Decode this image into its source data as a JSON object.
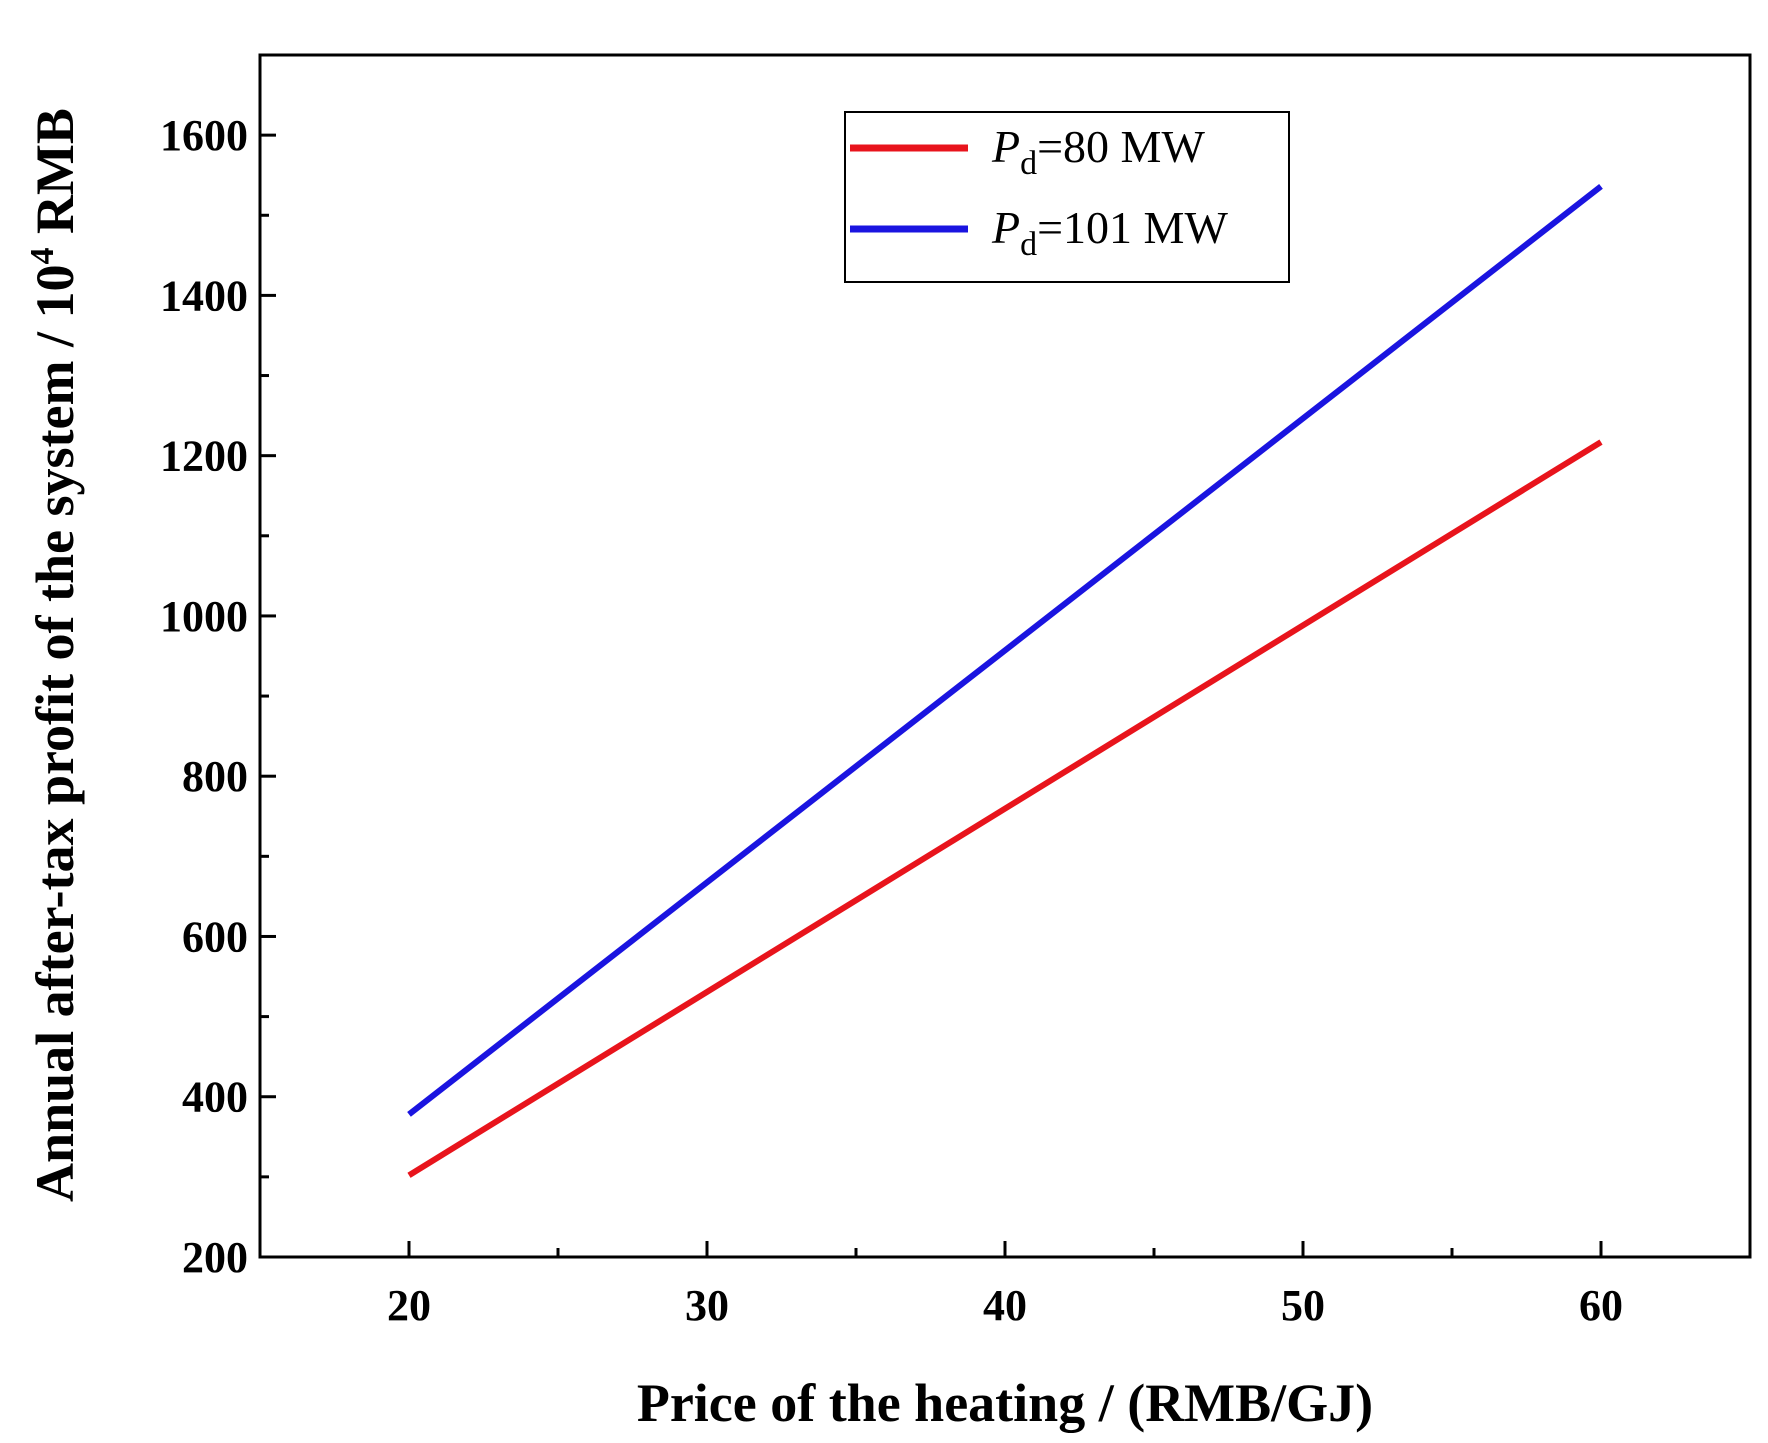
{
  "chart_data": {
    "type": "line",
    "title": "",
    "xlabel": "Price of the heating / (RMB/GJ)",
    "ylabel_main": "Annual after-tax profit of the system / 10",
    "ylabel_sup": "4",
    "ylabel_unit": " RMB",
    "xlim": [
      15,
      65
    ],
    "ylim": [
      200,
      1700
    ],
    "xticks": [
      20,
      30,
      40,
      50,
      60
    ],
    "yticks": [
      200,
      400,
      600,
      800,
      1000,
      1200,
      1400,
      1600
    ],
    "grid": false,
    "legend_position": "top-right",
    "series": [
      {
        "name": "Pd=80 MW",
        "label_symbol": "P",
        "label_sub": "d",
        "label_rest": "=80 MW",
        "color": "#e8141c",
        "x": [
          20,
          60
        ],
        "y": [
          302,
          1217
        ]
      },
      {
        "name": "Pd=101 MW",
        "label_symbol": "P",
        "label_sub": "d",
        "label_rest": "=101 MW",
        "color": "#1a14e0",
        "x": [
          20,
          60
        ],
        "y": [
          378,
          1536
        ]
      }
    ]
  }
}
